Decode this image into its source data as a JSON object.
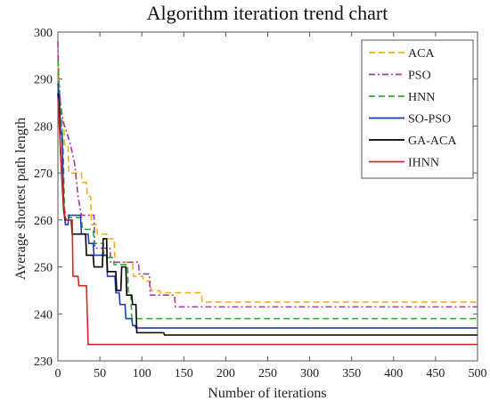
{
  "chart_data": {
    "type": "line",
    "title": "Algorithm iteration trend chart",
    "xlabel": "Number of iterations",
    "ylabel": "Average shortest path length",
    "xlim": [
      0,
      500
    ],
    "ylim": [
      230,
      300
    ],
    "xticks": [
      0,
      50,
      100,
      150,
      200,
      250,
      300,
      350,
      400,
      450,
      500
    ],
    "yticks": [
      230,
      240,
      250,
      260,
      270,
      280,
      290,
      300
    ],
    "grid": false,
    "legend_position": "top-right",
    "series": [
      {
        "name": "ACA",
        "color": "#EDB120",
        "dash": "dashed",
        "points": [
          [
            0,
            295
          ],
          [
            1,
            287
          ],
          [
            2,
            281
          ],
          [
            7,
            281
          ],
          [
            8,
            276
          ],
          [
            12,
            276
          ],
          [
            13,
            270
          ],
          [
            28,
            270
          ],
          [
            29,
            268
          ],
          [
            34,
            268
          ],
          [
            35,
            265
          ],
          [
            39,
            265
          ],
          [
            40,
            259
          ],
          [
            46,
            259
          ],
          [
            47,
            257
          ],
          [
            58,
            257
          ],
          [
            59,
            256
          ],
          [
            67,
            256
          ],
          [
            68,
            251
          ],
          [
            89,
            251
          ],
          [
            90,
            248
          ],
          [
            101,
            248
          ],
          [
            102,
            247
          ],
          [
            110,
            247
          ],
          [
            111,
            245
          ],
          [
            121,
            245
          ],
          [
            122,
            244.5
          ],
          [
            171,
            244.5
          ],
          [
            172,
            242.5
          ],
          [
            500,
            242.5
          ]
        ]
      },
      {
        "name": "PSO",
        "color": "#A33CA3",
        "dash": "dashdot",
        "points": [
          [
            0,
            298
          ],
          [
            1,
            290
          ],
          [
            3,
            285
          ],
          [
            6,
            281
          ],
          [
            10,
            279
          ],
          [
            15,
            276
          ],
          [
            20,
            272
          ],
          [
            24,
            265
          ],
          [
            28,
            261
          ],
          [
            43,
            261
          ],
          [
            44,
            254
          ],
          [
            62,
            254
          ],
          [
            63,
            251
          ],
          [
            96,
            251
          ],
          [
            97,
            248.5
          ],
          [
            109,
            248.5
          ],
          [
            110,
            244
          ],
          [
            139,
            244
          ],
          [
            140,
            241.5
          ],
          [
            500,
            241.5
          ]
        ]
      },
      {
        "name": "HNN",
        "color": "#3CA43C",
        "dash": "dashed",
        "points": [
          [
            0,
            294
          ],
          [
            2,
            287
          ],
          [
            4,
            283
          ],
          [
            6,
            276
          ],
          [
            8,
            262
          ],
          [
            10,
            261
          ],
          [
            13,
            261
          ],
          [
            14,
            260.5
          ],
          [
            28,
            260.5
          ],
          [
            29,
            258
          ],
          [
            42,
            258
          ],
          [
            43,
            255
          ],
          [
            54,
            255
          ],
          [
            55,
            252
          ],
          [
            66,
            252
          ],
          [
            67,
            250.5
          ],
          [
            83,
            250.5
          ],
          [
            84,
            244
          ],
          [
            87,
            244
          ],
          [
            88,
            239
          ],
          [
            500,
            239
          ]
        ]
      },
      {
        "name": "SO-PSO",
        "color": "#1F3EA8",
        "dash": "solid",
        "points": [
          [
            0,
            289
          ],
          [
            2,
            285
          ],
          [
            3,
            279
          ],
          [
            5,
            278
          ],
          [
            7,
            262
          ],
          [
            9,
            259
          ],
          [
            12,
            259
          ],
          [
            13,
            261
          ],
          [
            27,
            261
          ],
          [
            28,
            257
          ],
          [
            36,
            257
          ],
          [
            37,
            255
          ],
          [
            42,
            255
          ],
          [
            43,
            252.5
          ],
          [
            58,
            252.5
          ],
          [
            59,
            248
          ],
          [
            68,
            248
          ],
          [
            69,
            244.5
          ],
          [
            73,
            244.5
          ],
          [
            74,
            242
          ],
          [
            80,
            242
          ],
          [
            81,
            239
          ],
          [
            88,
            239
          ],
          [
            89,
            237.5
          ],
          [
            92,
            237.5
          ],
          [
            93,
            237
          ],
          [
            500,
            237
          ]
        ]
      },
      {
        "name": "GA-ACA",
        "color": "#000000",
        "dash": "solid",
        "points": [
          [
            0,
            287
          ],
          [
            2,
            282
          ],
          [
            3,
            275
          ],
          [
            5,
            268
          ],
          [
            7,
            262
          ],
          [
            9,
            260
          ],
          [
            16,
            260
          ],
          [
            17,
            257
          ],
          [
            33,
            257
          ],
          [
            34,
            252.5
          ],
          [
            42,
            252.5
          ],
          [
            43,
            250
          ],
          [
            53,
            250
          ],
          [
            54,
            256
          ],
          [
            58,
            256
          ],
          [
            59,
            249
          ],
          [
            69,
            249
          ],
          [
            70,
            245
          ],
          [
            75,
            245
          ],
          [
            76,
            250
          ],
          [
            81,
            250
          ],
          [
            82,
            244
          ],
          [
            88,
            244
          ],
          [
            89,
            242
          ],
          [
            93,
            242
          ],
          [
            94,
            236
          ],
          [
            126,
            236
          ],
          [
            127,
            235.5
          ],
          [
            500,
            235.5
          ]
        ]
      },
      {
        "name": "IHNN",
        "color": "#D62728",
        "dash": "solid",
        "points": [
          [
            0,
            286
          ],
          [
            2,
            279
          ],
          [
            4,
            272
          ],
          [
            6,
            266
          ],
          [
            8,
            261
          ],
          [
            10,
            260
          ],
          [
            17,
            260
          ],
          [
            18,
            248
          ],
          [
            24,
            248
          ],
          [
            25,
            246
          ],
          [
            34,
            246
          ],
          [
            35,
            240
          ],
          [
            36,
            233.5
          ],
          [
            500,
            233.5
          ]
        ]
      }
    ]
  }
}
